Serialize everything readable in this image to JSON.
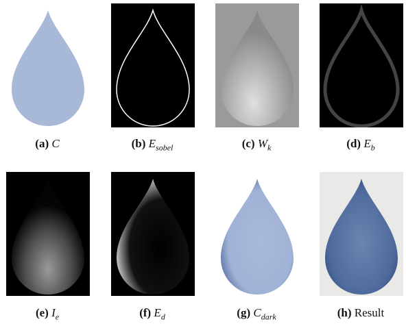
{
  "panels": [
    {
      "label": "(a)",
      "symbol": "C"
    },
    {
      "label": "(b)",
      "symbol": "E",
      "subscript": "sobel"
    },
    {
      "label": "(c)",
      "symbol": "W",
      "subscript": "k"
    },
    {
      "label": "(d)",
      "symbol": "E",
      "subscript": "b"
    },
    {
      "label": "(e)",
      "symbol": "I",
      "subscript": "e"
    },
    {
      "label": "(f)",
      "symbol": "E",
      "subscript": "d"
    },
    {
      "label": "(g)",
      "symbol": "C",
      "subscript": "dark"
    },
    {
      "label": "(h)",
      "text": "Result"
    }
  ]
}
